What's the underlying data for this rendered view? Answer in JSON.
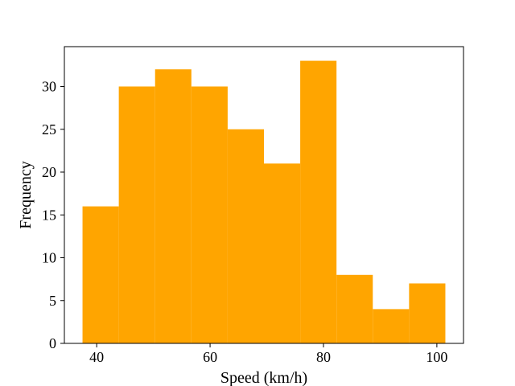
{
  "chart_data": {
    "type": "histogram",
    "title": "",
    "xlabel": "Speed (km/h)",
    "ylabel": "Frequency",
    "bar_color": "#FFA500",
    "bin_edges": [
      37.5,
      43.9,
      50.3,
      56.7,
      63.1,
      69.5,
      75.9,
      82.3,
      88.7,
      95.1,
      101.5
    ],
    "values": [
      16,
      30,
      32,
      30,
      25,
      21,
      33,
      8,
      4,
      7
    ],
    "xlim": [
      34.3,
      104.7
    ],
    "ylim": [
      0,
      34.65
    ],
    "xticks": [
      40,
      60,
      80,
      100
    ],
    "yticks": [
      0,
      5,
      10,
      15,
      20,
      25,
      30
    ],
    "grid": false,
    "legend": null
  }
}
